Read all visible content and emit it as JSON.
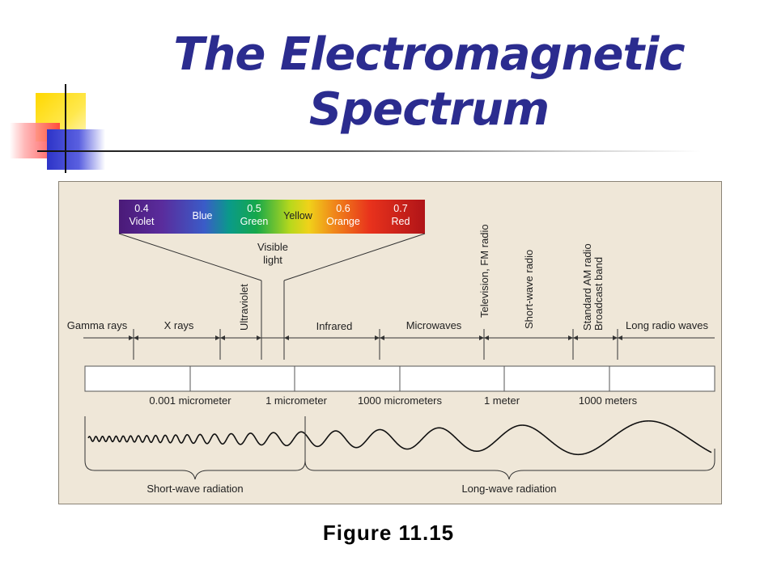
{
  "slide": {
    "title_line1": "The Electromagnetic",
    "title_line2": "Spectrum",
    "caption": "Figure 11.15"
  },
  "colors": {
    "title": "#2b2c8f",
    "panel": "#efe7d8",
    "deco_yellow": "#ffd800",
    "deco_red": "#ff3b3b",
    "deco_blue": "#2d34c8"
  },
  "visible_bar": {
    "items": [
      {
        "value": "0.4",
        "name": "Violet"
      },
      {
        "value": "",
        "name": "Blue"
      },
      {
        "value": "0.5",
        "name": "Green"
      },
      {
        "value": "",
        "name": "Yellow"
      },
      {
        "value": "0.6",
        "name": "Orange"
      },
      {
        "value": "0.7",
        "name": "Red"
      }
    ],
    "label_line1": "Visible",
    "label_line2": "light"
  },
  "bands": {
    "gamma": "Gamma rays",
    "xrays": "X rays",
    "ultraviolet": "Ultraviolet",
    "infrared": "Infrared",
    "microwaves": "Microwaves",
    "tv_fm": "Television, FM radio",
    "shortwave": "Short-wave radio",
    "am_line1": "Standard AM radio",
    "am_line2": "Broadcast band",
    "longradio": "Long radio waves"
  },
  "scale": [
    "0.001 micrometer",
    "1 micrometer",
    "1000 micrometers",
    "1 meter",
    "1000 meters"
  ],
  "radiation": {
    "short": "Short-wave radiation",
    "long": "Long-wave radiation"
  }
}
